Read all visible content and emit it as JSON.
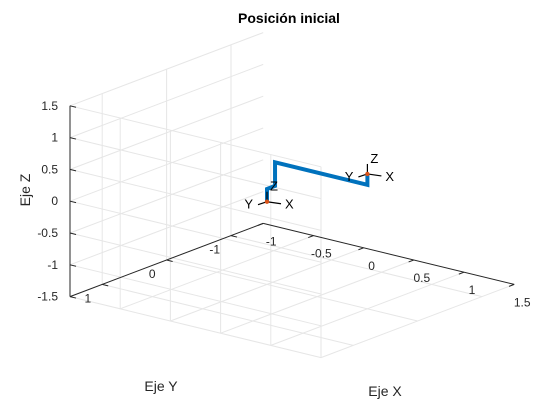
{
  "chart_data": {
    "type": "line3d",
    "title": "Posición inicial",
    "xlabel": "Eje X",
    "ylabel": "Eje Y",
    "zlabel": "Eje Z",
    "xlim": [
      -1,
      1.5
    ],
    "ylim": [
      -1.5,
      1.5
    ],
    "zlim": [
      -1.5,
      1.5
    ],
    "x_ticks": [
      -1,
      -0.5,
      0,
      0.5,
      1,
      1.5
    ],
    "x_tick_labels": [
      "-1",
      "-0.5",
      "0",
      "0.5",
      "1",
      "1.5"
    ],
    "y_ticks": [
      -1,
      0,
      1
    ],
    "y_tick_labels": [
      "-1",
      "0",
      "1"
    ],
    "z_ticks": [
      -1.5,
      -1,
      -0.5,
      0,
      0.5,
      1,
      1.5
    ],
    "z_tick_labels": [
      "-1.5",
      "-1",
      "-0.5",
      "0",
      "0.5",
      "1",
      "1.5"
    ],
    "grid": true,
    "view": "default 3-D (az -37.5, el 30)",
    "series": [
      {
        "color": "#0072BD",
        "points": [
          {
            "x": 0,
            "y": 0,
            "z": -0.2
          },
          {
            "x": 0,
            "y": 0,
            "z": 0
          },
          {
            "x": 0.08,
            "y": 0,
            "z": 0.08
          },
          {
            "x": 0.08,
            "y": 0,
            "z": 0.45
          },
          {
            "x": 1,
            "y": 0,
            "z": 0.45
          },
          {
            "x": 1,
            "y": 0,
            "z": 0.62
          }
        ]
      }
    ],
    "frames": [
      {
        "origin": {
          "x": 0,
          "y": 0,
          "z": -0.2
        },
        "labels": [
          "X",
          "Y",
          "Z"
        ]
      },
      {
        "origin": {
          "x": 1,
          "y": 0,
          "z": 0.62
        },
        "labels": [
          "X",
          "Y",
          "Z"
        ]
      }
    ]
  },
  "colors": {
    "grid": "#e6e6e6",
    "axis": "#262626",
    "link": "#0072BD",
    "frame_origin": "#d95319"
  }
}
